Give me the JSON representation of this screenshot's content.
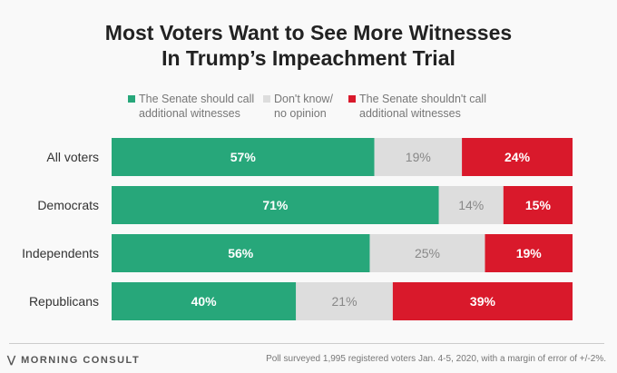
{
  "chart_data": {
    "type": "bar",
    "stacked": true,
    "orientation": "horizontal",
    "title": "Most Voters Want to See More Witnesses In Trump’s Impeachment Trial",
    "title_lines": [
      "Most Voters Want to See More Witnesses",
      "In Trump’s Impeachment Trial"
    ],
    "categories": [
      "All voters",
      "Democrats",
      "Independents",
      "Republicans"
    ],
    "series": [
      {
        "name": "The Senate should call additional witnesses",
        "lines": [
          "The Senate should call",
          "additional witnesses"
        ],
        "color": "#27a77a",
        "values": [
          57,
          71,
          56,
          40
        ]
      },
      {
        "name": "Don't know/ no opinion",
        "lines": [
          "Don't know/",
          "no opinion"
        ],
        "color": "#dddddd",
        "values": [
          19,
          14,
          25,
          21
        ]
      },
      {
        "name": "The Senate shouldn't call additional witnesses",
        "lines": [
          "The Senate shouldn't call",
          "additional witnesses"
        ],
        "color": "#d9192b",
        "values": [
          24,
          15,
          19,
          39
        ]
      }
    ],
    "value_suffix": "%",
    "xlim": [
      0,
      100
    ],
    "legend_position": "top"
  },
  "footer": {
    "brand": "MORNING CONSULT",
    "note": "Poll surveyed 1,995 registered voters Jan. 4-5, 2020, with a margin of error of +/-2%."
  }
}
